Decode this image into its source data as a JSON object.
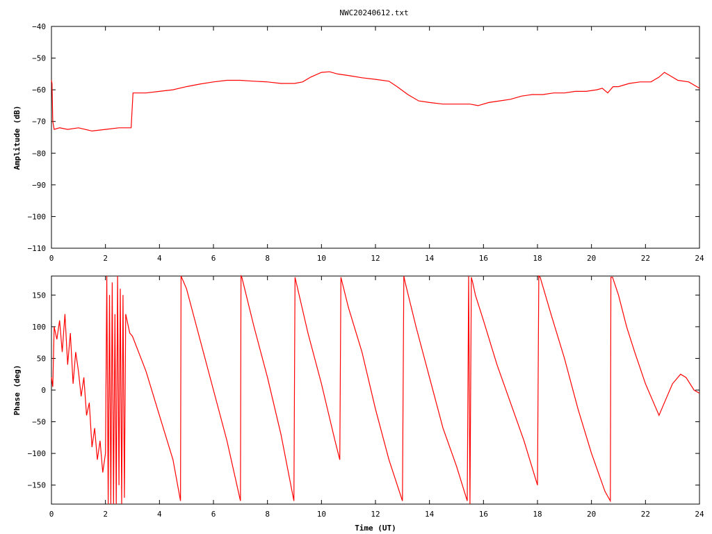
{
  "chart_data": [
    {
      "type": "line",
      "title": "NWC20240612.txt",
      "xlabel": "",
      "ylabel": "Amplitude (dB)",
      "xlim": [
        0,
        24
      ],
      "ylim": [
        -110,
        -40
      ],
      "xticks": [
        "0",
        "2",
        "4",
        "6",
        "8",
        "10",
        "12",
        "14",
        "16",
        "18",
        "20",
        "22",
        "24"
      ],
      "yticks": [
        "−40",
        "−50",
        "−60",
        "−70",
        "−80",
        "−90",
        "−100",
        "−110"
      ],
      "ytick_values": [
        -40,
        -50,
        -60,
        -70,
        -80,
        -90,
        -100,
        -110
      ],
      "grid": false,
      "series_color": "#ff0000",
      "series": [
        {
          "x": [
            0,
            0.02,
            0.05,
            0.1,
            0.3,
            0.6,
            1.0,
            1.5,
            2.0,
            2.5,
            2.95,
            3.02,
            3.1,
            3.5,
            4.0,
            4.5,
            5.0,
            5.5,
            6.0,
            6.5,
            7.0,
            7.5,
            8.0,
            8.5,
            9.0,
            9.3,
            9.6,
            10.0,
            10.3,
            10.6,
            11.0,
            11.5,
            12.0,
            12.5,
            12.8,
            13.2,
            13.6,
            14.0,
            14.5,
            15.0,
            15.5,
            15.8,
            16.2,
            16.6,
            17.0,
            17.4,
            17.8,
            18.2,
            18.6,
            19.0,
            19.4,
            19.8,
            20.2,
            20.4,
            20.6,
            20.8,
            21.0,
            21.4,
            21.8,
            22.2,
            22.5,
            22.7,
            22.9,
            23.2,
            23.6,
            24.0
          ],
          "y": [
            -57,
            -58,
            -70,
            -72.5,
            -72,
            -72.5,
            -72,
            -73,
            -72.5,
            -72,
            -72,
            -61,
            -61,
            -61,
            -60.5,
            -60,
            -59,
            -58.2,
            -57.5,
            -57,
            -57,
            -57.3,
            -57.5,
            -58,
            -58,
            -57.5,
            -56,
            -54.5,
            -54.3,
            -55,
            -55.5,
            -56.2,
            -56.7,
            -57.3,
            -59,
            -61.5,
            -63.5,
            -64,
            -64.5,
            -64.5,
            -64.5,
            -65,
            -64,
            -63.5,
            -63,
            -62,
            -61.5,
            -61.5,
            -61,
            -61,
            -60.5,
            -60.5,
            -60,
            -59.5,
            -61,
            -59,
            -59,
            -58,
            -57.5,
            -57.5,
            -56,
            -54.5,
            -55.5,
            -57,
            -57.5,
            -59.5
          ]
        }
      ]
    },
    {
      "type": "line",
      "title": "",
      "xlabel": "Time (UT)",
      "ylabel": "Phase (deg)",
      "xlim": [
        0,
        24
      ],
      "ylim": [
        -180,
        180
      ],
      "xticks": [
        "0",
        "2",
        "4",
        "6",
        "8",
        "10",
        "12",
        "14",
        "16",
        "18",
        "20",
        "22",
        "24"
      ],
      "yticks": [
        "150",
        "100",
        "50",
        "0",
        "−50",
        "−100",
        "−150"
      ],
      "ytick_values": [
        150,
        100,
        50,
        0,
        -50,
        -100,
        -150
      ],
      "grid": false,
      "series_color": "#ff0000",
      "series": [
        {
          "x": [
            0,
            0.05,
            0.1,
            0.2,
            0.3,
            0.4,
            0.5,
            0.6,
            0.7,
            0.8,
            0.9,
            1.0,
            1.1,
            1.2,
            1.3,
            1.4,
            1.5,
            1.6,
            1.7,
            1.8,
            1.9,
            2.0,
            2.05,
            2.1,
            2.15,
            2.2,
            2.25,
            2.3,
            2.35,
            2.4,
            2.45,
            2.5,
            2.55,
            2.6,
            2.65,
            2.7,
            2.75,
            2.8,
            2.9,
            3.0,
            3.5,
            4.0,
            4.5,
            4.78,
            4.8,
            5.0,
            5.5,
            6.0,
            6.5,
            7.0,
            7.02,
            7.05,
            7.5,
            8.0,
            8.5,
            8.98,
            9.02,
            9.5,
            10.0,
            10.5,
            10.68,
            10.72,
            11.0,
            11.5,
            12.0,
            12.5,
            13.0,
            13.05,
            13.1,
            13.5,
            14.0,
            14.5,
            15.0,
            15.4,
            15.45,
            15.5,
            15.55,
            15.6,
            15.7,
            16.0,
            16.5,
            17.0,
            17.5,
            18.0,
            18.05,
            18.1,
            18.5,
            19.0,
            19.5,
            20.0,
            20.5,
            20.7,
            20.72,
            20.78,
            21.0,
            21.3,
            21.6,
            22.0,
            22.3,
            22.5,
            22.7,
            23.0,
            23.3,
            23.5,
            23.8,
            24.0
          ],
          "y": [
            20,
            5,
            100,
            80,
            110,
            60,
            120,
            40,
            90,
            10,
            60,
            30,
            -10,
            20,
            -40,
            -20,
            -90,
            -60,
            -110,
            -80,
            -130,
            -100,
            180,
            -180,
            150,
            -180,
            170,
            -180,
            120,
            -180,
            180,
            -150,
            160,
            -180,
            150,
            -170,
            120,
            110,
            90,
            85,
            30,
            -40,
            -110,
            -175,
            180,
            160,
            80,
            0,
            -80,
            -175,
            180,
            178,
            100,
            20,
            -70,
            -175,
            178,
            90,
            10,
            -80,
            -110,
            178,
            130,
            60,
            -30,
            -110,
            -175,
            180,
            170,
            100,
            20,
            -60,
            -120,
            -175,
            180,
            -180,
            178,
            170,
            150,
            110,
            40,
            -20,
            -80,
            -150,
            180,
            178,
            120,
            50,
            -30,
            -100,
            -160,
            -175,
            178,
            178,
            150,
            100,
            60,
            10,
            -20,
            -40,
            -20,
            10,
            25,
            20,
            0,
            -5
          ]
        }
      ]
    }
  ]
}
